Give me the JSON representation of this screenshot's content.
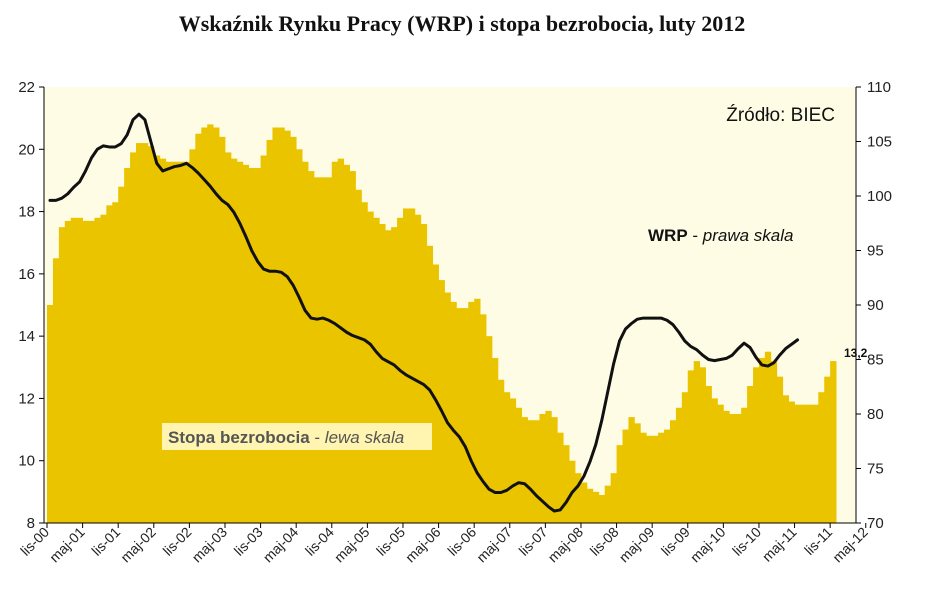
{
  "colors": {
    "bar": "#EBC400",
    "line": "#111111",
    "plot_bg": "#FFFCE6",
    "label_box": "#FFF5B0"
  },
  "chart_data": {
    "type": "bar",
    "title": "Wskaźnik Rynku Pracy (WRP) i stopa bezrobocia, luty 2012",
    "source_note": "Źródło: BIEC",
    "left_axis": {
      "ylim": [
        8,
        22
      ],
      "ticks": [
        "8",
        "10",
        "12",
        "14",
        "16",
        "18",
        "20",
        "22"
      ]
    },
    "right_axis": {
      "ylim": [
        70,
        110
      ],
      "ticks": [
        "70",
        "75",
        "80",
        "85",
        "90",
        "95",
        "100",
        "105",
        "110"
      ]
    },
    "x_tick_labels": [
      "lis-00",
      "maj-01",
      "lis-01",
      "maj-02",
      "lis-02",
      "maj-03",
      "lis-03",
      "maj-04",
      "lis-04",
      "maj-05",
      "lis-05",
      "maj-06",
      "lis-06",
      "maj-07",
      "lis-07",
      "maj-08",
      "lis-08",
      "maj-09",
      "lis-09",
      "maj-10",
      "lis-10",
      "maj-11",
      "lis-11",
      "maj-12"
    ],
    "grid": false,
    "series": [
      {
        "name": "Stopa bezrobocia",
        "name_suffix": "lewa skala",
        "kind": "bar",
        "axis": "left",
        "start_month": "lis-00",
        "values": [
          15.0,
          16.5,
          17.5,
          17.7,
          17.8,
          17.8,
          17.7,
          17.7,
          17.8,
          17.9,
          18.2,
          18.3,
          18.8,
          19.4,
          19.9,
          20.2,
          20.2,
          20.1,
          19.8,
          19.7,
          19.6,
          19.6,
          19.6,
          19.6,
          20.0,
          20.5,
          20.7,
          20.8,
          20.7,
          20.4,
          19.9,
          19.7,
          19.6,
          19.5,
          19.4,
          19.4,
          19.8,
          20.3,
          20.7,
          20.7,
          20.6,
          20.4,
          20.0,
          19.6,
          19.3,
          19.1,
          19.1,
          19.1,
          19.6,
          19.7,
          19.5,
          19.3,
          18.7,
          18.3,
          18.0,
          17.8,
          17.6,
          17.4,
          17.5,
          17.8,
          18.1,
          18.1,
          17.9,
          17.6,
          16.9,
          16.3,
          15.8,
          15.4,
          15.1,
          14.9,
          14.9,
          15.1,
          15.2,
          14.7,
          14.0,
          13.3,
          12.6,
          12.2,
          12.0,
          11.7,
          11.4,
          11.3,
          11.3,
          11.5,
          11.6,
          11.4,
          10.9,
          10.5,
          10.0,
          9.6,
          9.3,
          9.1,
          9.0,
          8.9,
          9.2,
          9.6,
          10.5,
          11.0,
          11.4,
          11.2,
          10.9,
          10.8,
          10.8,
          10.9,
          11.0,
          11.3,
          11.7,
          12.2,
          12.9,
          13.2,
          13.0,
          12.4,
          12.0,
          11.8,
          11.6,
          11.5,
          11.5,
          11.7,
          12.4,
          13.0,
          13.3,
          13.5,
          13.2,
          12.7,
          12.1,
          11.9,
          11.8,
          11.8,
          11.8,
          11.8,
          12.2,
          12.7,
          13.2
        ]
      },
      {
        "name": "WRP",
        "name_suffix": "prawa skala",
        "kind": "line",
        "axis": "right",
        "start_month": "lis-00",
        "values": [
          99.6,
          99.6,
          99.8,
          100.2,
          100.8,
          101.3,
          102.3,
          103.5,
          104.3,
          104.6,
          104.5,
          104.5,
          104.8,
          105.6,
          107.0,
          107.5,
          107.0,
          105.0,
          103.0,
          102.3,
          102.5,
          102.7,
          102.8,
          103.0,
          102.6,
          102.1,
          101.5,
          100.9,
          100.2,
          99.6,
          99.2,
          98.5,
          97.5,
          96.3,
          95.0,
          94.0,
          93.3,
          93.1,
          93.1,
          93.0,
          92.6,
          91.8,
          90.7,
          89.5,
          88.8,
          88.7,
          88.8,
          88.6,
          88.3,
          87.9,
          87.5,
          87.2,
          87.0,
          86.8,
          86.4,
          85.7,
          85.1,
          84.8,
          84.5,
          84.0,
          83.6,
          83.3,
          83.0,
          82.7,
          82.2,
          81.3,
          80.3,
          79.2,
          78.5,
          77.9,
          77.0,
          75.7,
          74.6,
          73.8,
          73.1,
          72.8,
          72.8,
          73.0,
          73.4,
          73.7,
          73.6,
          73.1,
          72.5,
          72.0,
          71.5,
          71.1,
          71.2,
          71.9,
          72.8,
          73.4,
          74.3,
          75.6,
          77.2,
          79.4,
          82.0,
          84.6,
          86.7,
          87.8,
          88.3,
          88.7,
          88.8,
          88.8,
          88.8,
          88.8,
          88.6,
          88.2,
          87.5,
          86.7,
          86.2,
          85.9,
          85.4,
          85.0,
          84.9,
          85.0,
          85.1,
          85.4,
          86.0,
          86.5,
          86.1,
          85.2,
          84.5,
          84.4,
          84.7,
          85.4,
          86.0,
          86.4,
          86.8
        ]
      }
    ],
    "annotations": [
      {
        "text": "13,2",
        "refers_to": "Stopa bezrobocia",
        "position": "last-bar"
      }
    ]
  }
}
